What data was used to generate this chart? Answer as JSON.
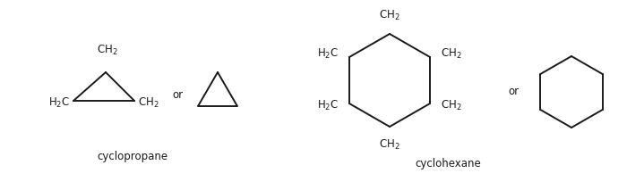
{
  "bg_color": "#ffffff",
  "text_color": "#1a1a1a",
  "line_color": "#1a1a1a",
  "label_cyclopropane": "cyclopropane",
  "label_cyclohexane": "cyclohexane",
  "label_or": "or",
  "font_size_main": 8.5,
  "line_width": 1.4
}
